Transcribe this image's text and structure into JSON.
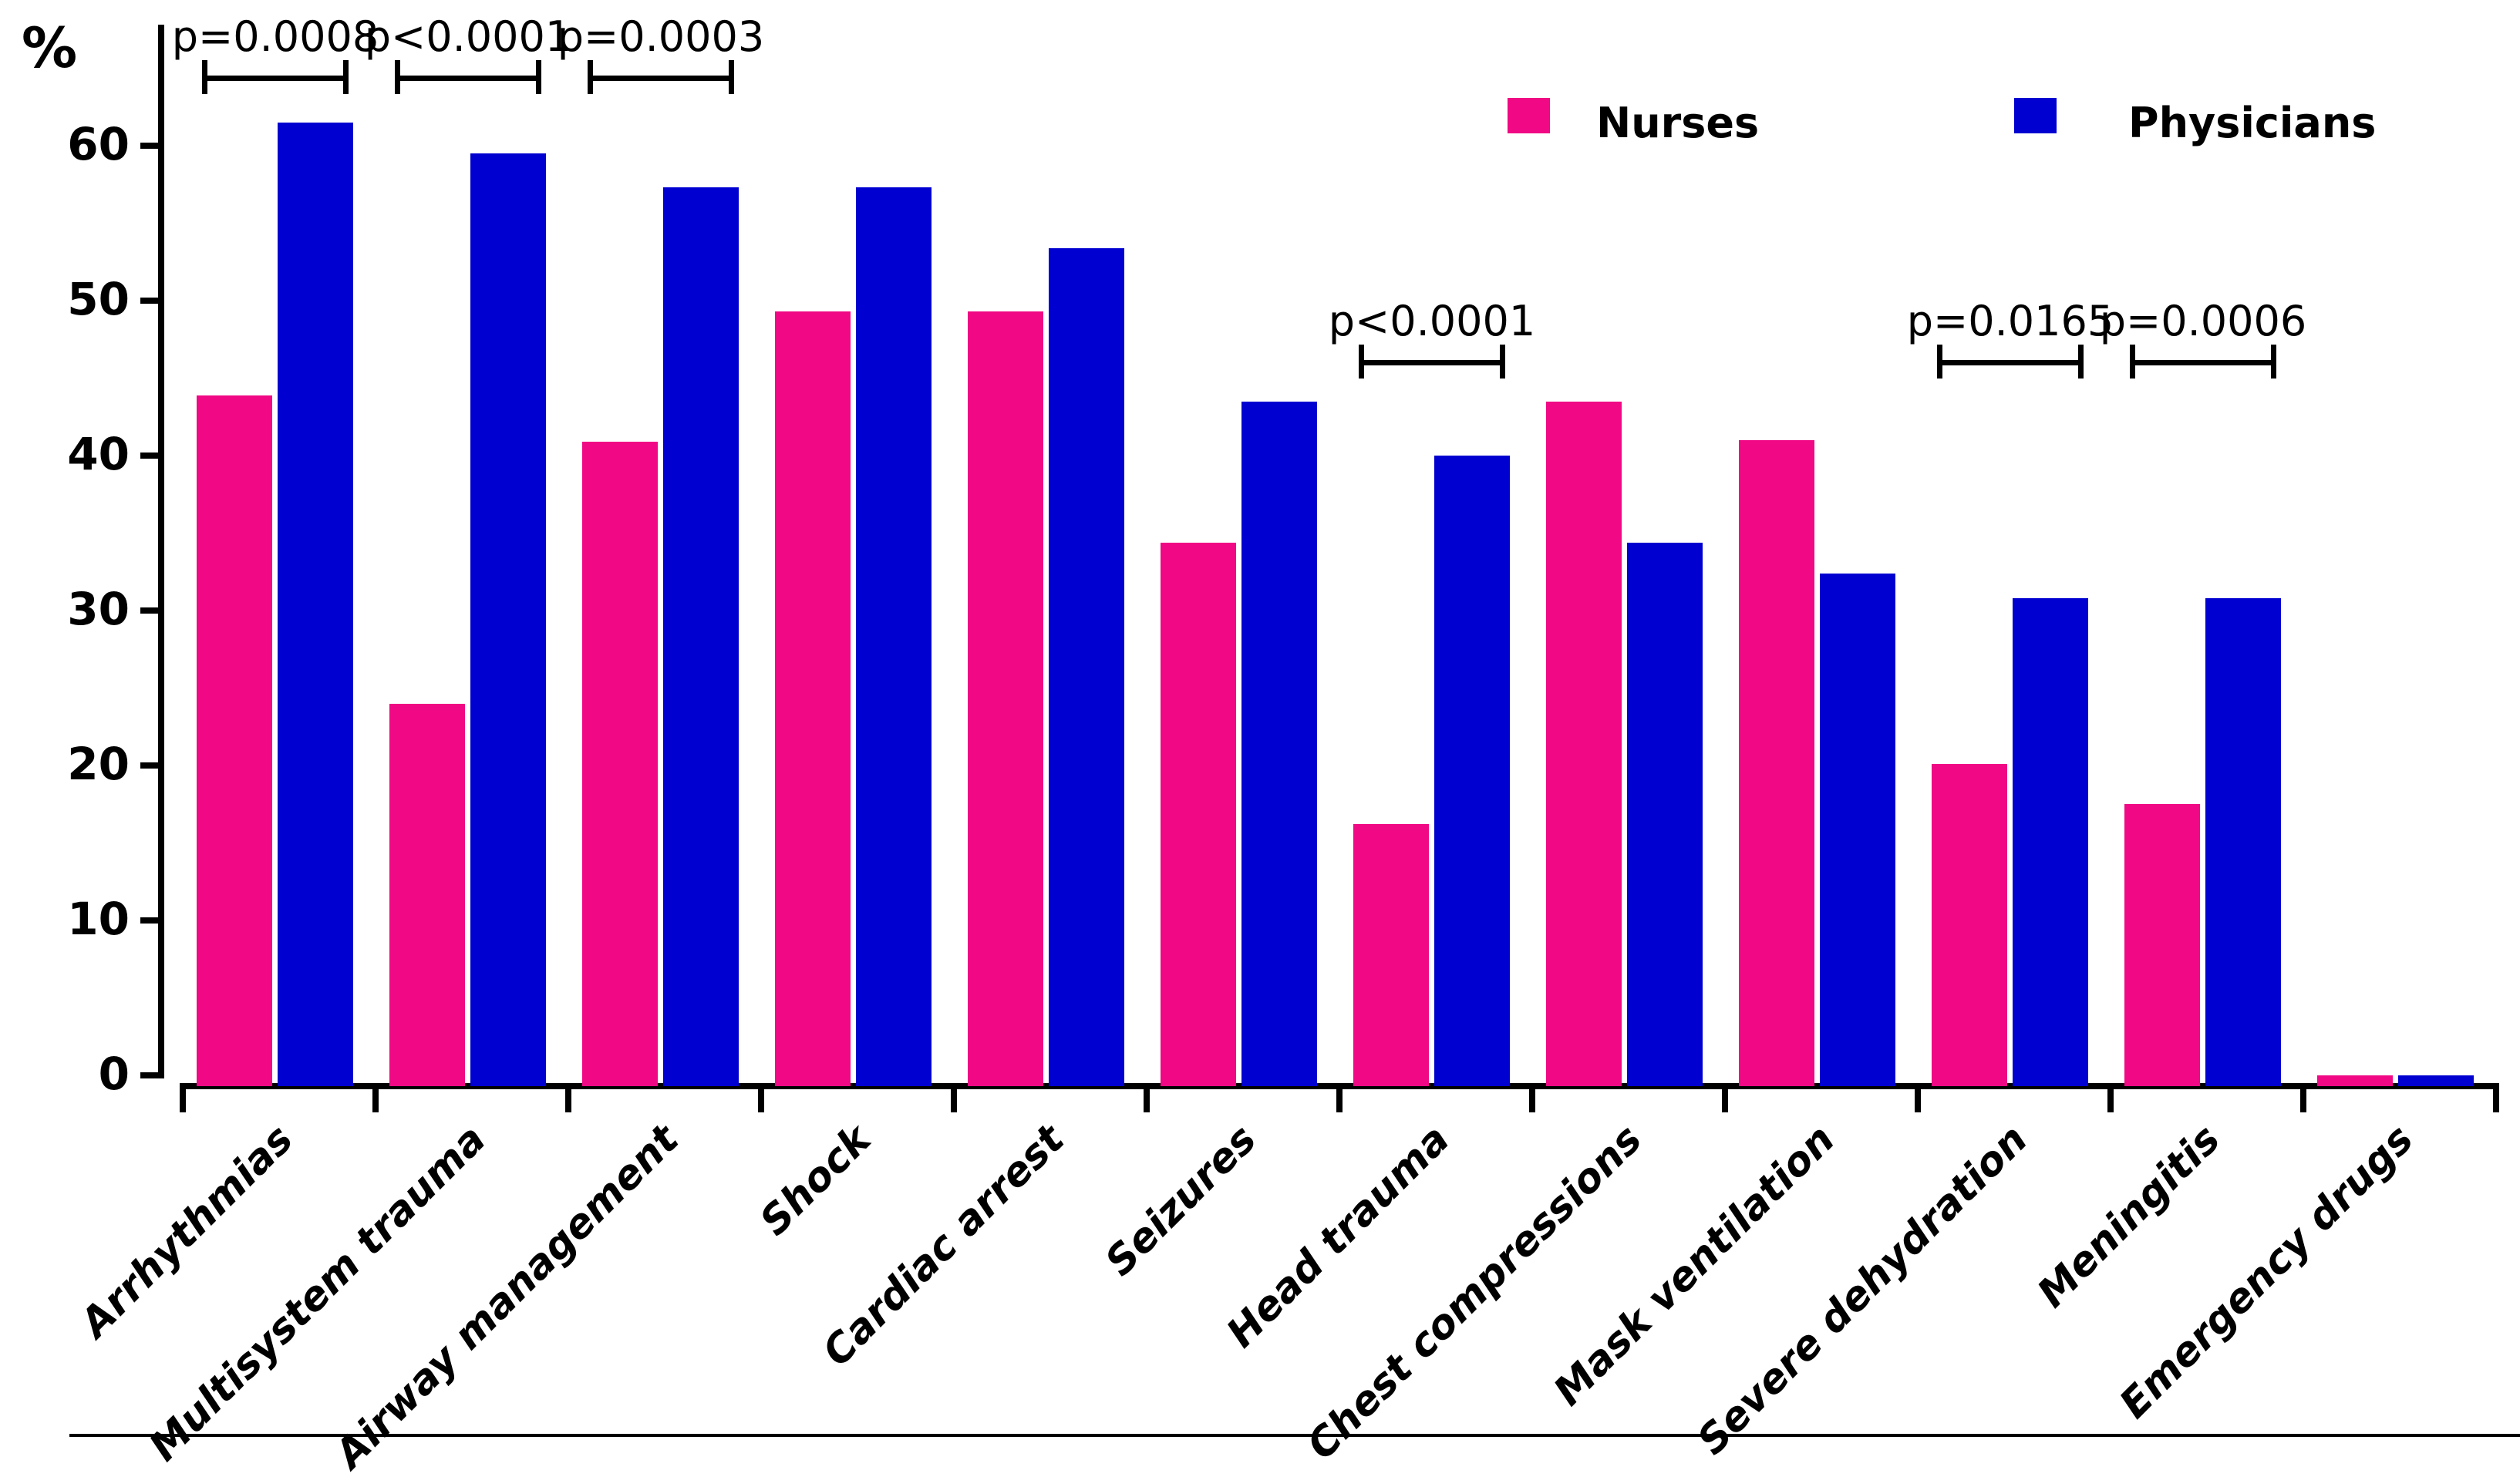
{
  "figure": {
    "y_axis_unit_label": "%",
    "y_tick_labels": [
      "0",
      "10",
      "20",
      "30",
      "40",
      "50",
      "60"
    ]
  },
  "legend": {
    "nurses_label": "Nurses",
    "physicians_label": "Physicians"
  },
  "colors": {
    "nurses": "#F00884",
    "physicians": "#0000D0",
    "axis": "#000000"
  },
  "chart_data": {
    "type": "bar",
    "title": "",
    "xlabel": "",
    "ylabel": "%",
    "ylim": [
      0,
      65
    ],
    "yticks": [
      0,
      10,
      20,
      30,
      40,
      50,
      60
    ],
    "grid": false,
    "legend_position": "top-right",
    "categories": [
      "Arrhythmias",
      "Multisystem trauma",
      "Airway management",
      "Shock",
      "Cardiac arrest",
      "Seizures",
      "Head trauma",
      "Chest compressions",
      "Mask ventilation",
      "Severe dehydration",
      "Meningitis",
      "Emergency drugs"
    ],
    "series": [
      {
        "name": "Nurses",
        "color": "#F00884",
        "values": [
          44.3,
          24.4,
          41.3,
          49.7,
          49.7,
          34.8,
          16.6,
          43.9,
          41.4,
          20.5,
          17.9,
          0.4
        ]
      },
      {
        "name": "Physicians",
        "color": "#0000D0",
        "values": [
          61.9,
          59.9,
          57.7,
          57.7,
          53.8,
          43.9,
          40.4,
          34.8,
          32.8,
          31.2,
          31.2,
          0.4
        ]
      }
    ],
    "annotations": [
      {
        "category_index": 0,
        "label": "p=0.0008"
      },
      {
        "category_index": 1,
        "label": "p<0.0001"
      },
      {
        "category_index": 2,
        "label": "p=0.0003"
      },
      {
        "category_index": 6,
        "label": "p<0.0001"
      },
      {
        "category_index": 9,
        "label": "p=0.0165"
      },
      {
        "category_index": 10,
        "label": "p=0.0006"
      }
    ]
  }
}
